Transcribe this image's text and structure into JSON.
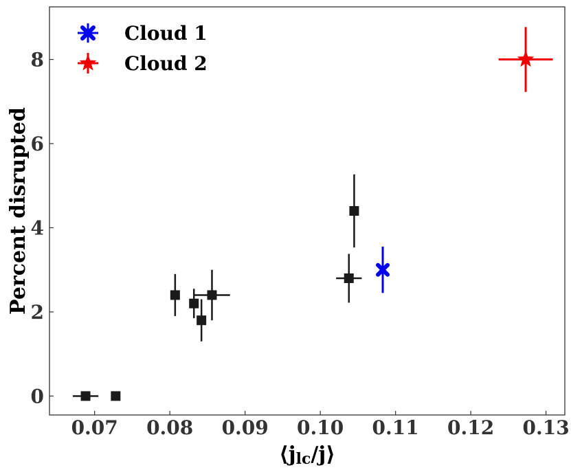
{
  "chart_data": {
    "type": "scatter",
    "xlabel": "⟨j",
    "xlabel_sub": "lc",
    "xlabel_tail": "/j⟩",
    "ylabel": "Percent disrupted",
    "xlim": [
      0.064,
      0.1325
    ],
    "ylim": [
      -0.45,
      9.25
    ],
    "xticks": [
      0.07,
      0.08,
      0.09,
      0.1,
      0.11,
      0.12,
      0.13
    ],
    "xtick_labels": [
      "0.07",
      "0.08",
      "0.09",
      "0.10",
      "0.11",
      "0.12",
      "0.13"
    ],
    "yticks": [
      0,
      2,
      4,
      6,
      8
    ],
    "ytick_labels": [
      "0",
      "2",
      "4",
      "6",
      "8"
    ],
    "grid": false,
    "legend_position": "top-left",
    "series": [
      {
        "marker": "square",
        "color": "#1a1a1a",
        "points": [
          {
            "x": 0.0688,
            "y": 0.0,
            "xerr": 0.0017,
            "yerr": 0.0
          },
          {
            "x": 0.0728,
            "y": 0.0,
            "xerr": 0.0,
            "yerr": 0.0
          },
          {
            "x": 0.0807,
            "y": 2.4,
            "xerr": 0.0,
            "yerr": 0.5
          },
          {
            "x": 0.0832,
            "y": 2.2,
            "xerr": 0.0,
            "yerr": 0.35
          },
          {
            "x": 0.0842,
            "y": 1.8,
            "xerr": 0.0,
            "yerr": 0.5
          },
          {
            "x": 0.0856,
            "y": 2.4,
            "xerr": 0.0024,
            "yerr": 0.6
          },
          {
            "x": 0.1038,
            "y": 2.8,
            "xerr": 0.0017,
            "yerr": 0.58
          },
          {
            "x": 0.1045,
            "y": 4.4,
            "xerr": 0.0,
            "yerr": 0.87
          }
        ]
      },
      {
        "name": "Cloud 1",
        "marker": "x-bold",
        "color": "#0000ee",
        "points": [
          {
            "x": 0.1083,
            "y": 3.0,
            "xerr": 0.0,
            "yerr": 0.55
          }
        ]
      },
      {
        "name": "Cloud 2",
        "marker": "star",
        "color": "#ee0000",
        "points": [
          {
            "x": 0.1273,
            "y": 8.0,
            "xerr": 0.0036,
            "yerr": 0.77
          }
        ]
      }
    ]
  }
}
